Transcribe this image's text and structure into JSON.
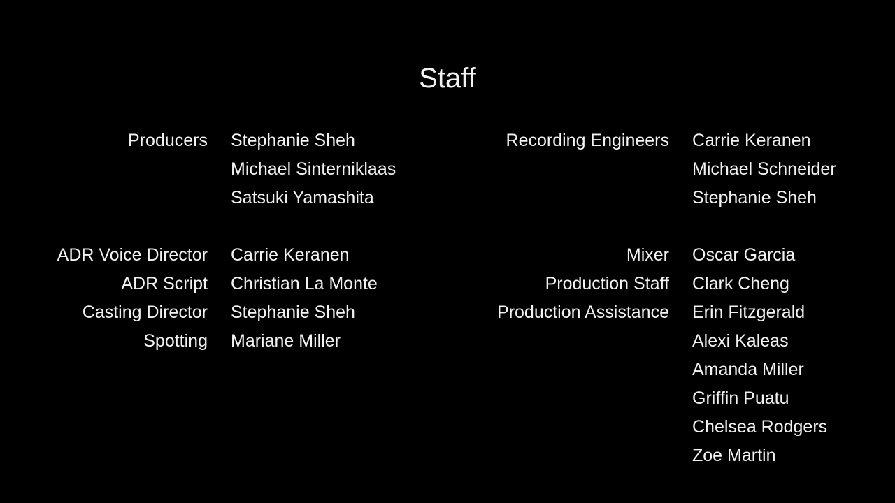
{
  "title": "Staff",
  "left_column": [
    {
      "role": "Producers",
      "names": [
        "Stephanie Sheh",
        "Michael Sinterniklaas",
        "Satsuki Yamashita"
      ]
    },
    {
      "role": "",
      "names": []
    },
    {
      "role": "ADR Voice Director",
      "names": [
        "Carrie Keranen"
      ]
    },
    {
      "role": "ADR Script",
      "names": [
        "Christian La Monte"
      ]
    },
    {
      "role": "Casting Director",
      "names": [
        "Stephanie Sheh"
      ]
    },
    {
      "role": "Spotting",
      "names": [
        "Mariane Miller"
      ]
    }
  ],
  "right_column": [
    {
      "role": "Recording Engineers",
      "names": [
        "Carrie Keranen",
        "Michael Schneider",
        "Stephanie Sheh"
      ]
    },
    {
      "role": "",
      "names": []
    },
    {
      "role": "Mixer",
      "names": [
        "Oscar Garcia"
      ]
    },
    {
      "role": "Production Staff",
      "names": [
        "Clark Cheng"
      ]
    },
    {
      "role": "Production Assistance",
      "names": [
        "Erin Fitzgerald",
        "Alexi Kaleas",
        "Amanda Miller",
        "Griffin Puatu",
        "Chelsea Rodgers",
        "Zoe Martin"
      ]
    }
  ]
}
